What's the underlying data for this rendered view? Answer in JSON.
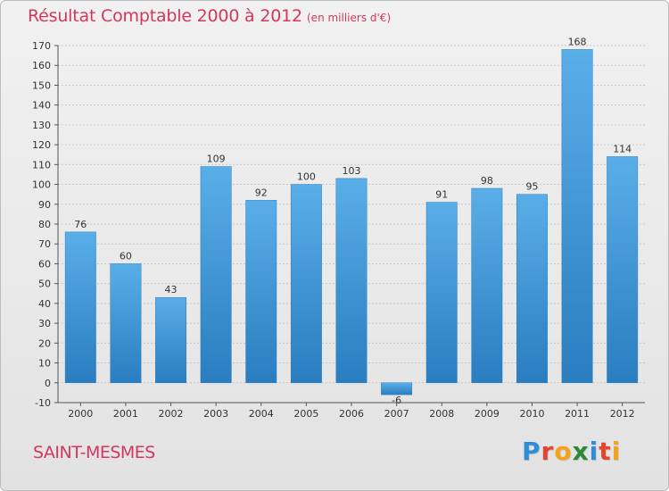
{
  "header": {
    "title": "Résultat Comptable 2000 à 2012",
    "subtitle": "(en milliers d'€)"
  },
  "footer": {
    "town": "SAINT-MESMES",
    "brand_letters": [
      {
        "char": "P",
        "color": "#2e8fd6"
      },
      {
        "char": "r",
        "color": "#e2462e"
      },
      {
        "char": "o",
        "color": "#f2a21b"
      },
      {
        "char": "x",
        "color": "#2a8a3a"
      },
      {
        "char": "i",
        "color": "#2e8fd6"
      },
      {
        "char": "t",
        "color": "#e2462e"
      },
      {
        "char": "i",
        "color": "#f2a21b"
      }
    ]
  },
  "colors": {
    "text_accent": "#d2385f",
    "bar_top": "#5aaee8",
    "bar_bottom": "#2a7dbf"
  },
  "chart_data": {
    "type": "bar",
    "categories": [
      "2000",
      "2001",
      "2002",
      "2003",
      "2004",
      "2005",
      "2006",
      "2007",
      "2008",
      "2009",
      "2010",
      "2011",
      "2012"
    ],
    "values": [
      76,
      60,
      43,
      109,
      92,
      100,
      103,
      -6,
      91,
      98,
      95,
      168,
      114
    ],
    "data_labels": [
      "76",
      "60",
      "43",
      "109",
      "92",
      "100",
      "103",
      "-6",
      "91",
      "98",
      "95",
      "168",
      "114"
    ],
    "title": "Résultat Comptable 2000 à 2012",
    "subtitle": "(en milliers d'€)",
    "ylim": [
      -10,
      170
    ],
    "yticks": [
      -10,
      0,
      10,
      20,
      30,
      40,
      50,
      60,
      70,
      80,
      90,
      100,
      110,
      120,
      130,
      140,
      150,
      160,
      170
    ],
    "grid": "horizontal dashed"
  }
}
